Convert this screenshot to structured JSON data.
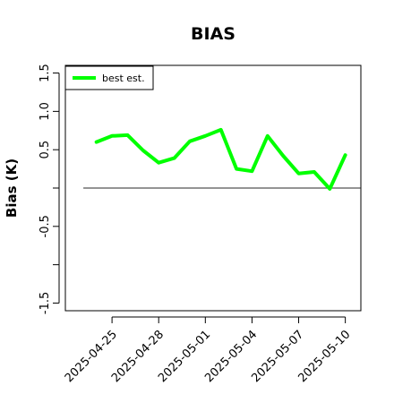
{
  "chart_data": {
    "type": "line",
    "title": "BIAS",
    "xlabel": "",
    "ylabel": "Bias (K)",
    "ylim": [
      -1.6,
      1.6
    ],
    "xlim": [
      "2025-04-22",
      "2025-05-11"
    ],
    "yticks": [
      -1.5,
      -1.0,
      -0.5,
      0,
      0.5,
      1.0,
      1.5
    ],
    "ytick_labels": [
      "-1.5",
      "",
      "-0.5",
      "",
      "0.5",
      "1.0",
      "1.5"
    ],
    "xticks": [
      "2025-04-25",
      "2025-04-28",
      "2025-05-01",
      "2025-05-04",
      "2025-05-07",
      "2025-05-10"
    ],
    "reference_line": 0,
    "legend": {
      "placement": "top-left",
      "entries": [
        "best est."
      ]
    },
    "grid": false,
    "series": [
      {
        "name": "best est.",
        "color": "#00ff00",
        "x": [
          "2025-04-24",
          "2025-04-25",
          "2025-04-26",
          "2025-04-27",
          "2025-04-28",
          "2025-04-29",
          "2025-04-30",
          "2025-05-01",
          "2025-05-02",
          "2025-05-03",
          "2025-05-04",
          "2025-05-05",
          "2025-05-06",
          "2025-05-07",
          "2025-05-08",
          "2025-05-09",
          "2025-05-10"
        ],
        "values": [
          0.6,
          0.68,
          0.69,
          0.49,
          0.33,
          0.39,
          0.61,
          0.68,
          0.76,
          0.25,
          0.22,
          0.68,
          0.42,
          0.19,
          0.21,
          -0.01,
          0.43
        ]
      }
    ]
  }
}
